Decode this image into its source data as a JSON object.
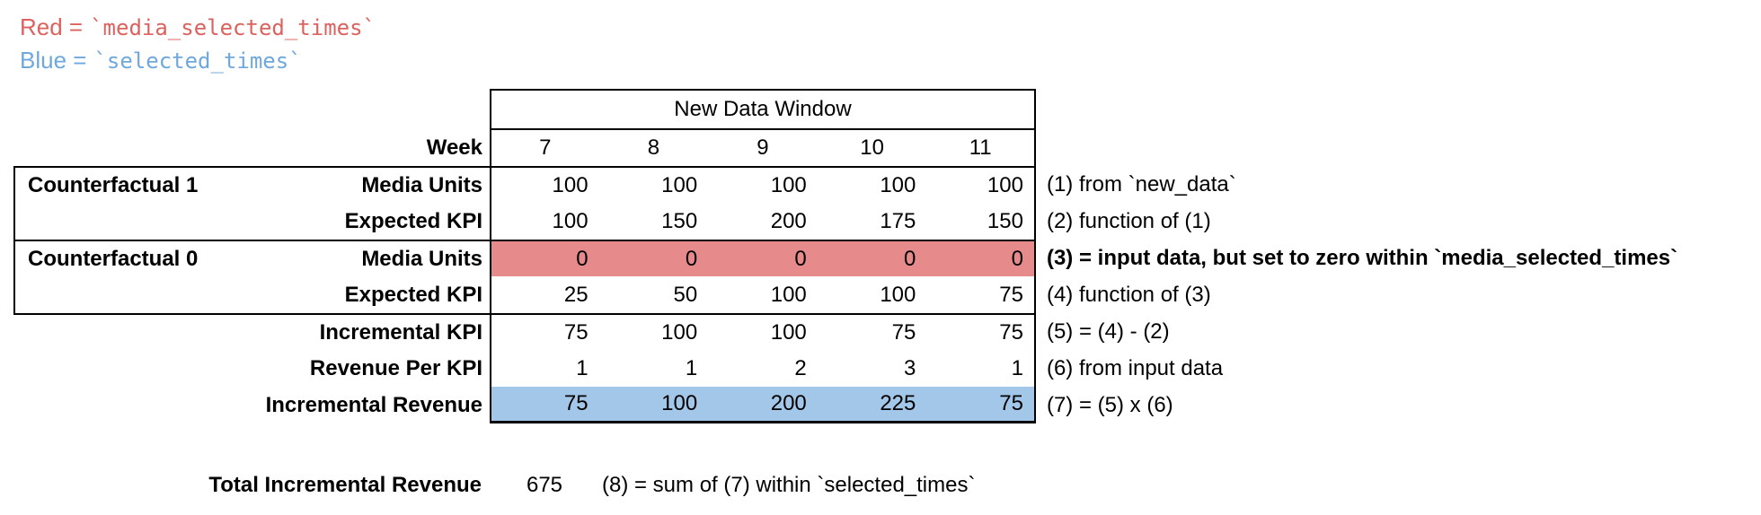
{
  "legend": {
    "red": {
      "word": "Red =",
      "code": "`media_selected_times`"
    },
    "blue": {
      "word": "Blue =",
      "code": "`selected_times`"
    }
  },
  "colors": {
    "red_text": "#dc625f",
    "blue_text": "#6fa8dc",
    "red_fill": "#e68a8c",
    "blue_fill": "#a3c7e9",
    "border": "#000000"
  },
  "table": {
    "header_label": "New Data Window",
    "week_label": "Week",
    "weeks": [
      "7",
      "8",
      "9",
      "10",
      "11"
    ],
    "rows": [
      {
        "group": "Counterfactual 1",
        "label": "Media Units",
        "values": [
          "100",
          "100",
          "100",
          "100",
          "100"
        ],
        "annotation": "(1) from `new_data`",
        "fill": null,
        "annotation_bold": false
      },
      {
        "group": null,
        "label": "Expected KPI",
        "values": [
          "100",
          "150",
          "200",
          "175",
          "150"
        ],
        "annotation": "(2) function of (1)",
        "fill": null,
        "annotation_bold": false
      },
      {
        "group": "Counterfactual 0",
        "label": "Media Units",
        "values": [
          "0",
          "0",
          "0",
          "0",
          "0"
        ],
        "annotation": "(3) = input data, but set to zero within `media_selected_times`",
        "fill": "red",
        "annotation_bold": true
      },
      {
        "group": null,
        "label": "Expected KPI",
        "values": [
          "25",
          "50",
          "100",
          "100",
          "75"
        ],
        "annotation": "(4) function of (3)",
        "fill": null,
        "annotation_bold": false
      },
      {
        "group": null,
        "label": "Incremental KPI",
        "values": [
          "75",
          "100",
          "100",
          "75",
          "75"
        ],
        "annotation": "(5) = (4) - (2)",
        "fill": null,
        "annotation_bold": false
      },
      {
        "group": null,
        "label": "Revenue Per KPI",
        "values": [
          "1",
          "1",
          "2",
          "3",
          "1"
        ],
        "annotation": "(6) from input data",
        "fill": null,
        "annotation_bold": false
      },
      {
        "group": null,
        "label": "Incremental Revenue",
        "values": [
          "75",
          "100",
          "200",
          "225",
          "75"
        ],
        "annotation": "(7) = (5) x (6)",
        "fill": "blue",
        "annotation_bold": false
      }
    ]
  },
  "total": {
    "label": "Total Incremental Revenue",
    "value": "675",
    "annotation": "(8) = sum of (7) within `selected_times`"
  }
}
